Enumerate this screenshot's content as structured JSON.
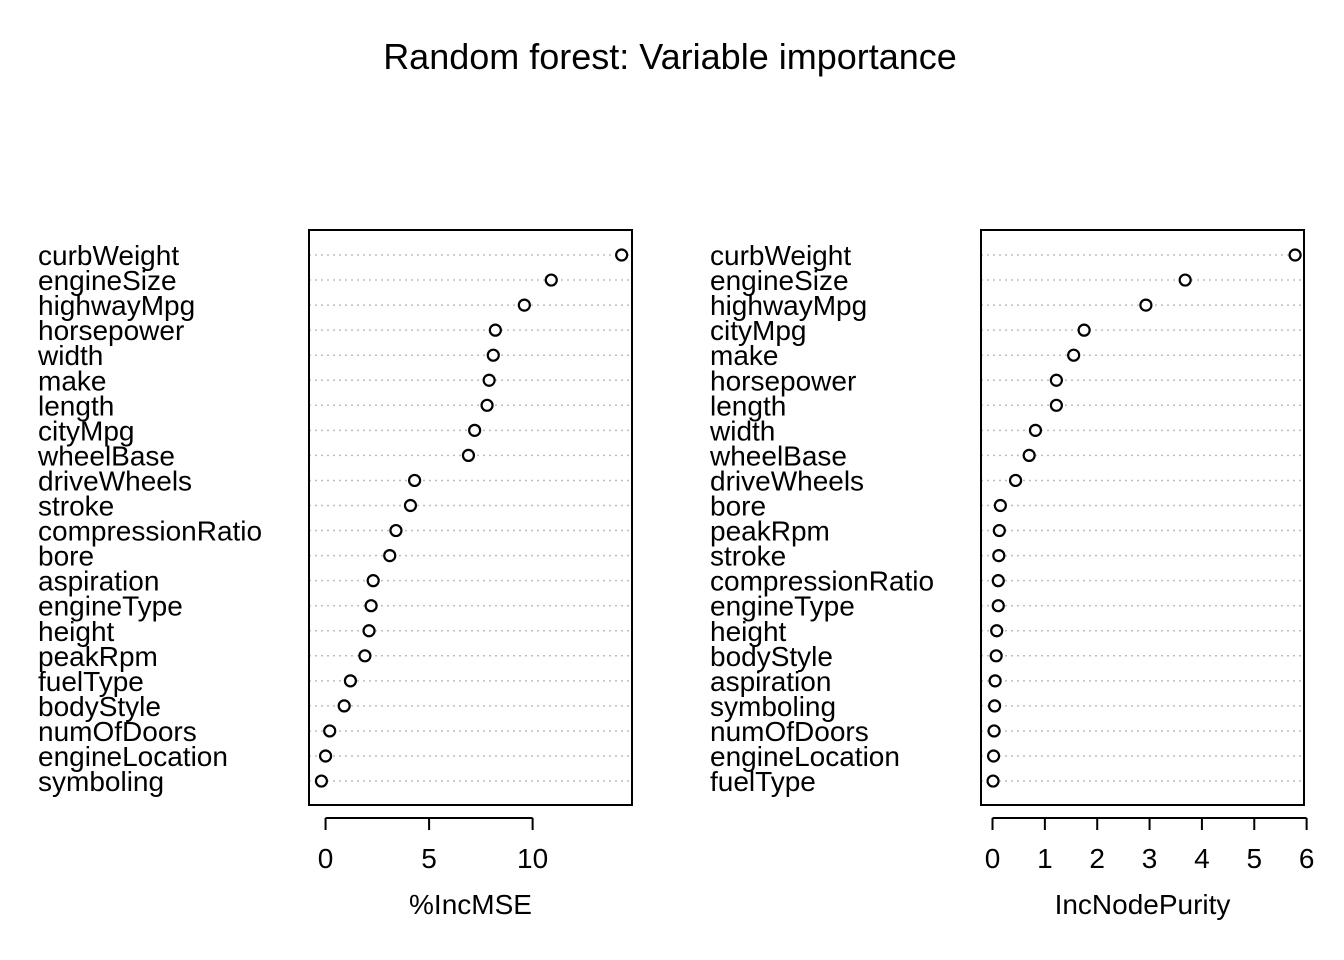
{
  "title": "Random forest: Variable importance",
  "chart_data": [
    {
      "type": "scatter",
      "xlabel": "%IncMSE",
      "xlim": [
        -0.8,
        14.8
      ],
      "xticks": [
        0,
        5,
        10
      ],
      "grid": "dotted horizontal lines",
      "categories": [
        "curbWeight",
        "engineSize",
        "highwayMpg",
        "horsepower",
        "width",
        "make",
        "length",
        "cityMpg",
        "wheelBase",
        "driveWheels",
        "stroke",
        "compressionRatio",
        "bore",
        "aspiration",
        "engineType",
        "height",
        "peakRpm",
        "fuelType",
        "bodyStyle",
        "numOfDoors",
        "engineLocation",
        "symboling"
      ],
      "values": [
        14.3,
        10.9,
        9.6,
        8.2,
        8.1,
        7.9,
        7.8,
        7.2,
        6.9,
        4.3,
        4.1,
        3.4,
        3.1,
        2.3,
        2.2,
        2.1,
        1.9,
        1.2,
        0.9,
        0.2,
        0.0,
        -0.2
      ]
    },
    {
      "type": "scatter",
      "xlabel": "IncNodePurity",
      "xlim": [
        -0.22,
        5.95
      ],
      "xticks": [
        0,
        1,
        2,
        3,
        4,
        5,
        6
      ],
      "grid": "dotted horizontal lines",
      "categories": [
        "curbWeight",
        "engineSize",
        "highwayMpg",
        "cityMpg",
        "make",
        "horsepower",
        "length",
        "width",
        "wheelBase",
        "driveWheels",
        "bore",
        "peakRpm",
        "stroke",
        "compressionRatio",
        "engineType",
        "height",
        "bodyStyle",
        "aspiration",
        "symboling",
        "numOfDoors",
        "engineLocation",
        "fuelType"
      ],
      "values": [
        5.78,
        3.68,
        2.93,
        1.75,
        1.55,
        1.22,
        1.22,
        0.82,
        0.7,
        0.44,
        0.15,
        0.13,
        0.12,
        0.11,
        0.11,
        0.08,
        0.07,
        0.05,
        0.04,
        0.03,
        0.02,
        0.01
      ]
    }
  ]
}
